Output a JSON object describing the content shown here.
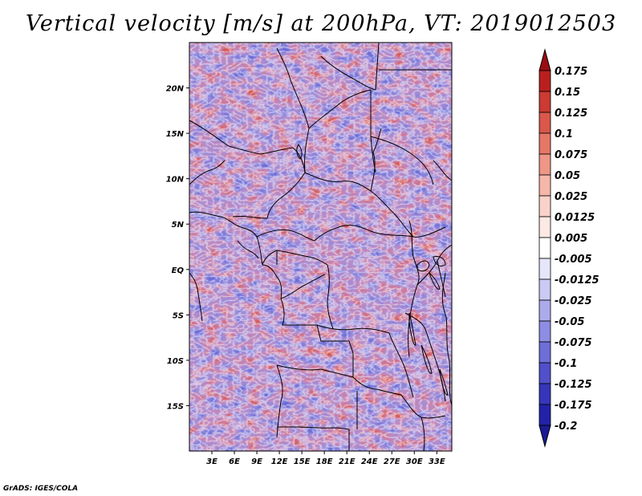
{
  "title": "Vertical velocity [m/s] at 200hPa, VT: 2019012503",
  "credit": "GrADS: IGES/COLA",
  "map": {
    "lon_range": [
      0,
      35
    ],
    "lat_range": [
      -20,
      25
    ],
    "lat_ticks": [
      {
        "value": 20,
        "label": "20N"
      },
      {
        "value": 15,
        "label": "15N"
      },
      {
        "value": 10,
        "label": "10N"
      },
      {
        "value": 5,
        "label": "5N"
      },
      {
        "value": 0,
        "label": "EQ"
      },
      {
        "value": -5,
        "label": "5S"
      },
      {
        "value": -10,
        "label": "10S"
      },
      {
        "value": -15,
        "label": "15S"
      }
    ],
    "lon_ticks": [
      {
        "value": 3,
        "label": "3E"
      },
      {
        "value": 6,
        "label": "6E"
      },
      {
        "value": 9,
        "label": "9E"
      },
      {
        "value": 12,
        "label": "12E"
      },
      {
        "value": 15,
        "label": "15E"
      },
      {
        "value": 18,
        "label": "18E"
      },
      {
        "value": 21,
        "label": "21E"
      },
      {
        "value": 24,
        "label": "24E"
      },
      {
        "value": 27,
        "label": "27E"
      },
      {
        "value": 30,
        "label": "30E"
      },
      {
        "value": 33,
        "label": "33E"
      }
    ]
  },
  "colorbar": {
    "levels": [
      {
        "label": "0.175",
        "color": "#a50f15"
      },
      {
        "label": "0.15",
        "color": "#b8201f"
      },
      {
        "label": "0.125",
        "color": "#cb3a33"
      },
      {
        "label": "0.1",
        "color": "#d9574b"
      },
      {
        "label": "0.075",
        "color": "#e47766"
      },
      {
        "label": "0.05",
        "color": "#ee9787"
      },
      {
        "label": "0.025",
        "color": "#f5b7aa"
      },
      {
        "label": "0.0125",
        "color": "#f9d2c9"
      },
      {
        "label": "0.005",
        "color": "#fce9e4"
      },
      {
        "label": "-0.005",
        "color": "#ffffff"
      },
      {
        "label": "-0.0125",
        "color": "#e6e6fa"
      },
      {
        "label": "-0.025",
        "color": "#cacaf4"
      },
      {
        "label": "-0.05",
        "color": "#ababec"
      },
      {
        "label": "-0.075",
        "color": "#8d8de3"
      },
      {
        "label": "-0.1",
        "color": "#6e6ed8"
      },
      {
        "label": "-0.125",
        "color": "#5050cb"
      },
      {
        "label": "-0.175",
        "color": "#3636bb"
      },
      {
        "label": "-0.2",
        "color": "#2222a8"
      }
    ],
    "top_arrow_color": "#9b0d12",
    "bottom_arrow_color": "#1a1a96"
  }
}
